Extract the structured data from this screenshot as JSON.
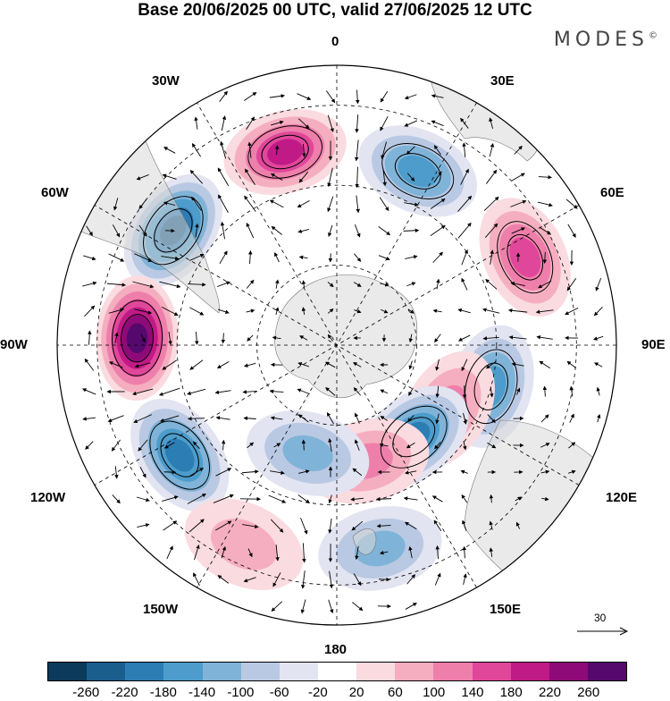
{
  "title": "Base 20/06/2025 00 UTC, valid 27/06/2025 12 UTC",
  "brand": "MODES",
  "brand_mark": "©",
  "longitude_labels": {
    "top": "0",
    "bottom": "180",
    "left": "90W",
    "right": "90E",
    "nw_upper": "30W",
    "nw_lower": "60W",
    "ne_upper": "30E",
    "ne_lower": "60E",
    "sw_upper": "120W",
    "sw_lower": "150W",
    "se_upper": "120E",
    "se_lower": "150E"
  },
  "reference_vector": {
    "label": "30",
    "icon": "arrow-right-icon"
  },
  "colorbar": {
    "colors": [
      "#0c3a5a",
      "#1a5e8e",
      "#2d7db5",
      "#4d9ccb",
      "#80b3d8",
      "#b9c9e3",
      "#e2e4f1",
      "#ffffff",
      "#fadbe0",
      "#f5aec0",
      "#ee7fab",
      "#e0479a",
      "#bf1a86",
      "#8e0a79",
      "#55096c"
    ],
    "tick_labels": [
      "-260",
      "-220",
      "-180",
      "-140",
      "-100",
      "-60",
      "-20",
      "20",
      "60",
      "100",
      "140",
      "180",
      "220",
      "260"
    ]
  },
  "map": {
    "projection": "south polar stereographic",
    "field": "geopotential anomaly",
    "blobs": [
      {
        "lon": -55,
        "lat": -40,
        "value": -200
      },
      {
        "lon": -15,
        "lat": -40,
        "value": 160
      },
      {
        "lon": 25,
        "lat": -42,
        "value": -130
      },
      {
        "lon": 65,
        "lat": -38,
        "value": 130
      },
      {
        "lon": -88,
        "lat": -40,
        "value": 250
      },
      {
        "lon": -125,
        "lat": -42,
        "value": -190
      },
      {
        "lon": 105,
        "lat": -50,
        "value": -150
      },
      {
        "lon": 120,
        "lat": -58,
        "value": 90
      },
      {
        "lon": 140,
        "lat": -60,
        "value": -180
      },
      {
        "lon": 165,
        "lat": -60,
        "value": 110
      },
      {
        "lon": -165,
        "lat": -62,
        "value": -80
      },
      {
        "lon": 168,
        "lat": -38,
        "value": -110
      },
      {
        "lon": -155,
        "lat": -35,
        "value": 70
      }
    ]
  }
}
